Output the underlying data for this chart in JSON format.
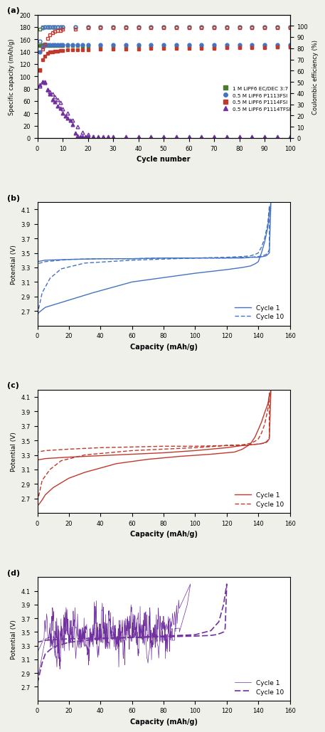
{
  "panel_a": {
    "xlabel": "Cycle number",
    "ylabel_left": "Specific capacity (mAh/g)",
    "ylabel_right": "Coulombic efficiency (%)",
    "xlim": [
      0,
      100
    ],
    "ylim_left": [
      0,
      200
    ],
    "ylim_right": [
      0,
      110
    ],
    "yticks_left": [
      0,
      20,
      40,
      60,
      80,
      100,
      120,
      140,
      160,
      180,
      200
    ],
    "yticks_right": [
      0,
      10,
      20,
      30,
      40,
      50,
      60,
      70,
      80,
      90,
      100
    ],
    "xticks": [
      0,
      10,
      20,
      30,
      40,
      50,
      60,
      70,
      80,
      90,
      100
    ],
    "green_cap_cycles": [
      1,
      2,
      3,
      4,
      5,
      6,
      7,
      8,
      9,
      10,
      12,
      14,
      16,
      18,
      20,
      25,
      30,
      35,
      40,
      45,
      50,
      55,
      60,
      65,
      70,
      75,
      80,
      85,
      90,
      95,
      100
    ],
    "green_cap_vals": [
      150,
      151,
      151,
      150,
      150,
      150,
      150,
      150,
      150,
      150,
      150,
      150,
      150,
      149,
      149,
      149,
      149,
      149,
      149,
      149,
      149,
      149,
      149,
      149,
      148,
      148,
      148,
      148,
      148,
      148,
      147
    ],
    "blue_cap_cycles": [
      1,
      2,
      3,
      4,
      5,
      6,
      7,
      8,
      9,
      10,
      12,
      14,
      16,
      18,
      20,
      25,
      30,
      35,
      40,
      45,
      50,
      55,
      60,
      65,
      70,
      75,
      80,
      85,
      90,
      95,
      100
    ],
    "blue_cap_vals": [
      140,
      148,
      150,
      151,
      151,
      151,
      151,
      151,
      151,
      151,
      151,
      151,
      151,
      151,
      151,
      151,
      151,
      151,
      151,
      151,
      151,
      151,
      151,
      151,
      151,
      151,
      151,
      151,
      151,
      151,
      151
    ],
    "red_cap_cycles": [
      1,
      2,
      3,
      4,
      5,
      6,
      7,
      8,
      9,
      10,
      12,
      14,
      16,
      18,
      20,
      25,
      30,
      35,
      40,
      45,
      50,
      55,
      60,
      65,
      70,
      75,
      80,
      85,
      90,
      95,
      100
    ],
    "red_cap_vals": [
      110,
      127,
      133,
      137,
      139,
      140,
      141,
      141,
      142,
      142,
      143,
      143,
      143,
      143,
      143,
      144,
      144,
      144,
      144,
      145,
      145,
      145,
      145,
      145,
      145,
      146,
      146,
      146,
      146,
      147,
      147
    ],
    "purple_cap_cycles": [
      1,
      2,
      3,
      4,
      5,
      6,
      7,
      8,
      9,
      10,
      11,
      12,
      13,
      14,
      15,
      16,
      17,
      18,
      19,
      20,
      22,
      24,
      26,
      28,
      30,
      35,
      40,
      45,
      50,
      55,
      60,
      65,
      70,
      75,
      80,
      85,
      90,
      95,
      100
    ],
    "purple_cap_vals": [
      86,
      91,
      90,
      78,
      71,
      62,
      59,
      52,
      48,
      40,
      36,
      32,
      29,
      22,
      8,
      3,
      2,
      2,
      2,
      2,
      2,
      2,
      2,
      2,
      2,
      2,
      2,
      2,
      2,
      2,
      2,
      2,
      2,
      2,
      2,
      2,
      2,
      2,
      2
    ],
    "green_ce_cycles": [
      1,
      2,
      3,
      4,
      5,
      6,
      7,
      8,
      9,
      10,
      15,
      20,
      25,
      30,
      35,
      40,
      45,
      50,
      55,
      60,
      65,
      70,
      75,
      80,
      85,
      90,
      95,
      100
    ],
    "green_ce_vals": [
      97,
      99,
      99,
      99,
      99,
      99,
      99,
      99,
      99,
      99,
      99,
      99,
      99,
      99,
      99,
      99,
      99,
      99,
      99,
      99,
      99,
      99,
      99,
      99,
      99,
      99,
      99,
      99
    ],
    "blue_ce_cycles": [
      1,
      2,
      3,
      4,
      5,
      6,
      7,
      8,
      9,
      10,
      15,
      20,
      25,
      30,
      35,
      40,
      45,
      50,
      55,
      60,
      65,
      70,
      75,
      80,
      85,
      90,
      95,
      100
    ],
    "blue_ce_vals": [
      86,
      98,
      99,
      99,
      99,
      99,
      99,
      99,
      99,
      99,
      99,
      99,
      99,
      99,
      99,
      99,
      99,
      99,
      99,
      99,
      99,
      99,
      99,
      99,
      99,
      99,
      99,
      99
    ],
    "red_ce_cycles": [
      1,
      2,
      3,
      4,
      5,
      6,
      7,
      8,
      9,
      10,
      15,
      20,
      25,
      30,
      35,
      40,
      45,
      50,
      55,
      60,
      65,
      70,
      75,
      80,
      85,
      90,
      95,
      100
    ],
    "red_ce_vals": [
      61,
      79,
      84,
      89,
      92,
      94,
      95,
      96,
      96,
      97,
      97,
      98,
      98,
      98,
      98,
      98,
      98,
      98,
      98,
      98,
      98,
      98,
      98,
      98,
      98,
      98,
      98,
      98
    ],
    "purple_ce_cycles": [
      1,
      2,
      3,
      4,
      5,
      6,
      7,
      8,
      9,
      10,
      12,
      14,
      16,
      18,
      20,
      22,
      24,
      26,
      28,
      30,
      35,
      40,
      45,
      50,
      55,
      60,
      65,
      70,
      75,
      80,
      85,
      90,
      95,
      100
    ],
    "purple_ce_vals": [
      46,
      50,
      50,
      43,
      41,
      39,
      37,
      34,
      32,
      26,
      22,
      16,
      10,
      5,
      3,
      1,
      0,
      0,
      0,
      0,
      0,
      0,
      0,
      0,
      0,
      0,
      0,
      0,
      0,
      0,
      0,
      0,
      0,
      0
    ],
    "legend_labels": [
      "1 M LiPF6 EC/DEC 3:7",
      "0.5 M LiPF6 P1113FSI",
      "0.5 M LiPF6 P1114FSI",
      "0.5 M LiPF6 P1114TFSI"
    ]
  },
  "panel_b": {
    "xlabel": "Capacity (mAh/g)",
    "ylabel": "Potential (V)",
    "xlim": [
      0,
      160
    ],
    "ylim": [
      2.5,
      4.2
    ],
    "xticks": [
      0,
      20,
      40,
      60,
      80,
      100,
      120,
      140,
      160
    ],
    "yticks": [
      2.7,
      2.9,
      3.1,
      3.3,
      3.5,
      3.7,
      3.9,
      4.1
    ],
    "color": "#4472c4",
    "c1_charge_x": [
      0,
      1,
      5,
      20,
      35,
      60,
      100,
      120,
      130,
      135,
      138,
      140,
      142,
      144,
      146,
      147,
      148
    ],
    "c1_charge_y": [
      2.65,
      2.68,
      2.75,
      2.85,
      2.95,
      3.1,
      3.22,
      3.27,
      3.3,
      3.32,
      3.35,
      3.38,
      3.5,
      3.65,
      3.85,
      4.05,
      4.2
    ],
    "c1_dis_x": [
      148,
      147,
      146,
      145,
      143,
      140,
      135,
      130,
      120,
      100,
      80,
      60,
      40,
      20,
      5,
      0
    ],
    "c1_dis_y": [
      4.2,
      3.5,
      3.48,
      3.46,
      3.45,
      3.44,
      3.44,
      3.43,
      3.43,
      3.43,
      3.43,
      3.42,
      3.42,
      3.41,
      3.4,
      3.38
    ],
    "c10_charge_x": [
      0,
      1,
      3,
      8,
      15,
      30,
      60,
      100,
      120,
      130,
      135,
      138,
      140,
      142,
      144,
      146,
      147
    ],
    "c10_charge_y": [
      2.65,
      2.75,
      2.95,
      3.15,
      3.28,
      3.36,
      3.4,
      3.43,
      3.44,
      3.45,
      3.46,
      3.48,
      3.5,
      3.58,
      3.7,
      3.9,
      4.15
    ],
    "c10_dis_x": [
      147,
      146,
      145,
      143,
      140,
      135,
      130,
      120,
      100,
      80,
      60,
      40,
      20,
      5,
      0
    ],
    "c10_dis_y": [
      3.55,
      3.5,
      3.48,
      3.46,
      3.45,
      3.44,
      3.44,
      3.43,
      3.43,
      3.43,
      3.42,
      3.42,
      3.41,
      3.38,
      3.35
    ]
  },
  "panel_c": {
    "xlabel": "Capacity (mAh/g)",
    "ylabel": "Potential (V)",
    "xlim": [
      0,
      160
    ],
    "ylim": [
      2.5,
      4.2
    ],
    "xticks": [
      0,
      20,
      40,
      60,
      80,
      100,
      120,
      140,
      160
    ],
    "yticks": [
      2.7,
      2.9,
      3.1,
      3.3,
      3.5,
      3.7,
      3.9,
      4.1
    ],
    "color": "#c0392b",
    "c1_charge_x": [
      0,
      1,
      3,
      5,
      10,
      20,
      30,
      40,
      50,
      70,
      90,
      110,
      125,
      130,
      135,
      138,
      140,
      142,
      144,
      146,
      147,
      148
    ],
    "c1_charge_y": [
      2.6,
      2.62,
      2.68,
      2.75,
      2.85,
      2.98,
      3.06,
      3.12,
      3.18,
      3.24,
      3.28,
      3.31,
      3.34,
      3.38,
      3.45,
      3.55,
      3.65,
      3.75,
      3.88,
      4.0,
      4.1,
      4.2
    ],
    "c1_dis_x": [
      148,
      147,
      146,
      145,
      143,
      140,
      135,
      130,
      120,
      100,
      80,
      60,
      40,
      20,
      5,
      0
    ],
    "c1_dis_y": [
      4.2,
      3.52,
      3.5,
      3.48,
      3.46,
      3.45,
      3.44,
      3.43,
      3.4,
      3.36,
      3.33,
      3.31,
      3.29,
      3.27,
      3.25,
      3.23
    ],
    "c10_charge_x": [
      0,
      1,
      3,
      8,
      15,
      30,
      60,
      100,
      120,
      130,
      135,
      138,
      140,
      142,
      144,
      146,
      147
    ],
    "c10_charge_y": [
      2.65,
      2.75,
      2.95,
      3.1,
      3.22,
      3.3,
      3.36,
      3.4,
      3.43,
      3.44,
      3.46,
      3.49,
      3.52,
      3.6,
      3.72,
      3.92,
      4.15
    ],
    "c10_dis_x": [
      147,
      146,
      145,
      143,
      140,
      135,
      130,
      120,
      100,
      80,
      60,
      40,
      20,
      5,
      0
    ],
    "c10_dis_y": [
      3.55,
      3.49,
      3.47,
      3.46,
      3.45,
      3.44,
      3.43,
      3.43,
      3.42,
      3.42,
      3.41,
      3.4,
      3.38,
      3.36,
      3.34
    ]
  },
  "panel_d": {
    "xlabel": "Capacity (mAh/g)",
    "ylabel": "Potential (V)",
    "xlim": [
      0,
      160
    ],
    "ylim": [
      2.5,
      4.3
    ],
    "xticks": [
      0,
      20,
      40,
      60,
      80,
      100,
      120,
      140,
      160
    ],
    "yticks": [
      2.7,
      2.9,
      3.1,
      3.3,
      3.5,
      3.7,
      3.9,
      4.1
    ],
    "color": "#7030a0",
    "c10_charge_x": [
      0,
      1,
      3,
      5,
      10,
      20,
      40,
      60,
      80,
      100,
      110,
      115,
      118,
      120
    ],
    "c10_charge_y": [
      2.75,
      2.85,
      3.05,
      3.18,
      3.28,
      3.35,
      3.4,
      3.42,
      3.44,
      3.46,
      3.52,
      3.65,
      3.9,
      4.2
    ],
    "c10_dis_x": [
      120,
      119,
      118,
      116,
      113,
      110,
      100,
      80,
      60,
      40,
      20,
      5,
      0
    ],
    "c10_dis_y": [
      4.2,
      3.55,
      3.5,
      3.48,
      3.46,
      3.45,
      3.44,
      3.43,
      3.42,
      3.41,
      3.4,
      3.38,
      3.35
    ]
  },
  "colors": {
    "green": "#4a7c2f",
    "blue": "#4472c4",
    "red": "#c0392b",
    "purple": "#7030a0"
  },
  "figure_bg": "#f0f0eb",
  "axes_bg": "#ffffff"
}
